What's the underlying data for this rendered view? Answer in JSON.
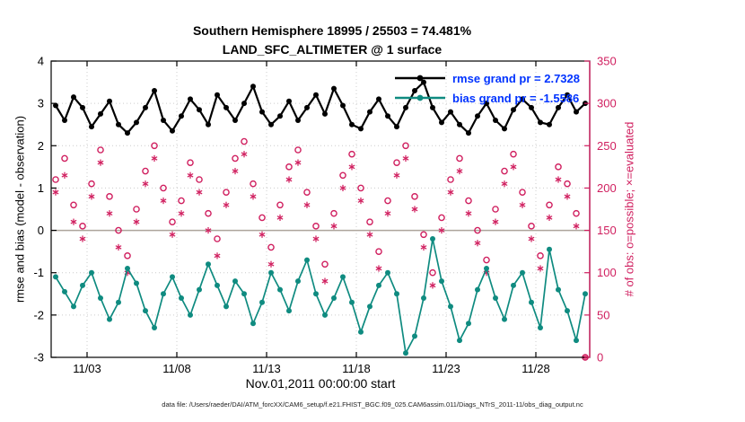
{
  "figure": {
    "title_line1": "Southern Hemisphere 18995 / 25503 = 74.481%",
    "title_line2": "LAND_SFC_ALTIMETER @ 1 surface",
    "footer": "data file: /Users/raeder/DAI/ATM_forcXX/CAM6_setup/f.e21.FHIST_BGC.f09_025.CAM6assim.011/Diags_NTrS_2011-11/obs_diag_output.nc"
  },
  "chart_data": {
    "type": "line",
    "title": "Southern Hemisphere 18995 / 25503 = 74.481%",
    "subtitle": "LAND_SFC_ALTIMETER @ 1 surface",
    "xlabel": "Nov.01,2011 00:00:00 start",
    "ylabel_left": "rmse and bias (model - observation)",
    "ylabel_right": "# of obs: o=possible; ×=evaluated",
    "x_range_days": [
      0,
      30
    ],
    "xticks": [
      {
        "day": 2,
        "label": "11/03"
      },
      {
        "day": 7,
        "label": "11/08"
      },
      {
        "day": 12,
        "label": "11/13"
      },
      {
        "day": 17,
        "label": "11/18"
      },
      {
        "day": 22,
        "label": "11/23"
      },
      {
        "day": 27,
        "label": "11/28"
      }
    ],
    "ylim_left": [
      -3,
      4
    ],
    "yticks_left": [
      -3,
      -2,
      -1,
      0,
      1,
      2,
      3,
      4
    ],
    "ylim_right": [
      0,
      350
    ],
    "yticks_right": [
      0,
      50,
      100,
      150,
      200,
      250,
      300,
      350
    ],
    "grid": true,
    "legend": [
      {
        "label": "rmse grand pr = 2.7328",
        "color": "#000000"
      },
      {
        "label": "bias grand pr = -1.5586",
        "color": "#0f8b80"
      }
    ],
    "colors": {
      "rmse": "#000000",
      "bias": "#0f8b80",
      "obs": "#d01f5f",
      "legend_text": "#0033ff",
      "grid": "#cccccc",
      "zero_line": "#ada49b",
      "axis": "#000000"
    },
    "x_days": [
      0.25,
      0.75,
      1.25,
      1.75,
      2.25,
      2.75,
      3.25,
      3.75,
      4.25,
      4.75,
      5.25,
      5.75,
      6.25,
      6.75,
      7.25,
      7.75,
      8.25,
      8.75,
      9.25,
      9.75,
      10.25,
      10.75,
      11.25,
      11.75,
      12.25,
      12.75,
      13.25,
      13.75,
      14.25,
      14.75,
      15.25,
      15.75,
      16.25,
      16.75,
      17.25,
      17.75,
      18.25,
      18.75,
      19.25,
      19.75,
      20.25,
      20.75,
      21.25,
      21.75,
      22.25,
      22.75,
      23.25,
      23.75,
      24.25,
      24.75,
      25.25,
      25.75,
      26.25,
      26.75,
      27.25,
      27.75,
      28.25,
      28.75,
      29.25,
      29.75
    ],
    "series": [
      {
        "name": "possible_obs",
        "axis": "right",
        "style": "circle",
        "color": "#d01f5f",
        "values": [
          210,
          235,
          180,
          155,
          205,
          245,
          190,
          150,
          120,
          175,
          220,
          250,
          200,
          160,
          185,
          230,
          210,
          170,
          140,
          195,
          235,
          255,
          205,
          165,
          130,
          180,
          225,
          245,
          195,
          155,
          110,
          170,
          215,
          240,
          200,
          160,
          125,
          185,
          230,
          250,
          190,
          145,
          100,
          165,
          210,
          235,
          185,
          150,
          115,
          175,
          220,
          240,
          195,
          155,
          120,
          180,
          225,
          205,
          170,
          0
        ]
      },
      {
        "name": "evaluated_obs",
        "axis": "right",
        "style": "asterisk",
        "color": "#d01f5f",
        "values": [
          195,
          215,
          160,
          140,
          190,
          230,
          170,
          130,
          100,
          160,
          205,
          235,
          185,
          145,
          170,
          215,
          195,
          150,
          120,
          180,
          220,
          240,
          190,
          145,
          110,
          165,
          210,
          230,
          180,
          140,
          90,
          155,
          200,
          225,
          185,
          145,
          105,
          170,
          215,
          235,
          175,
          130,
          85,
          150,
          195,
          220,
          170,
          135,
          100,
          160,
          205,
          225,
          180,
          140,
          105,
          165,
          210,
          190,
          155,
          0
        ]
      },
      {
        "name": "bias",
        "axis": "left",
        "style": "line-dot",
        "color": "#0f8b80",
        "values": [
          -1.1,
          -1.45,
          -1.8,
          -1.3,
          -1.0,
          -1.6,
          -2.1,
          -1.7,
          -0.9,
          -1.25,
          -1.9,
          -2.3,
          -1.5,
          -1.1,
          -1.6,
          -2.0,
          -1.4,
          -0.8,
          -1.3,
          -1.8,
          -1.2,
          -1.5,
          -2.2,
          -1.7,
          -1.0,
          -1.4,
          -1.9,
          -1.2,
          -0.7,
          -1.5,
          -2.0,
          -1.6,
          -1.1,
          -1.7,
          -2.4,
          -1.8,
          -1.3,
          -1.0,
          -1.5,
          -2.9,
          -2.5,
          -1.6,
          -0.2,
          -1.2,
          -1.8,
          -2.6,
          -2.2,
          -1.4,
          -0.9,
          -1.6,
          -2.1,
          -1.3,
          -1.0,
          -1.7,
          -2.3,
          -0.45,
          -1.4,
          -1.9,
          -2.6,
          -1.5
        ]
      },
      {
        "name": "rmse",
        "axis": "left",
        "style": "line-dot",
        "color": "#000000",
        "values": [
          2.95,
          2.6,
          3.15,
          2.9,
          2.45,
          2.75,
          3.05,
          2.5,
          2.3,
          2.55,
          2.9,
          3.3,
          2.6,
          2.35,
          2.7,
          3.1,
          2.85,
          2.5,
          3.2,
          2.9,
          2.6,
          3.0,
          3.4,
          2.8,
          2.5,
          2.7,
          3.05,
          2.6,
          2.9,
          3.2,
          2.75,
          3.35,
          2.95,
          2.5,
          2.4,
          2.8,
          3.1,
          2.7,
          2.45,
          2.9,
          3.3,
          3.5,
          2.9,
          2.55,
          2.8,
          2.5,
          2.3,
          2.7,
          3.0,
          2.6,
          2.4,
          2.85,
          3.1,
          2.9,
          2.55,
          2.5,
          2.9,
          3.2,
          2.8,
          3.0
        ]
      }
    ]
  }
}
